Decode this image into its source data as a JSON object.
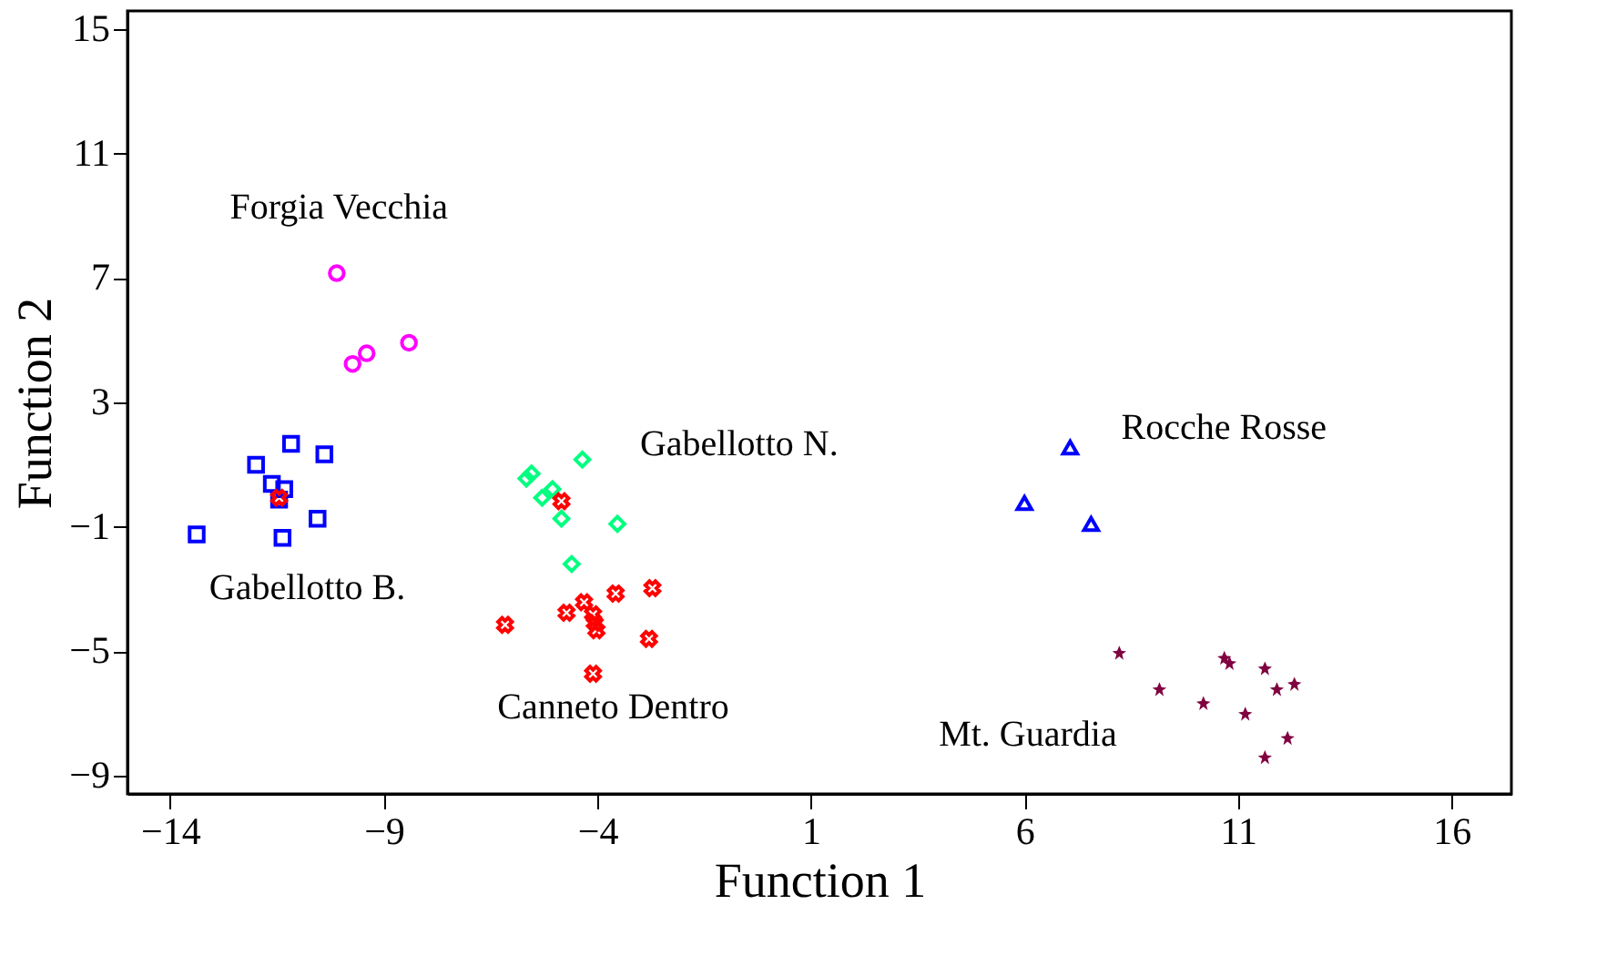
{
  "chart_data": {
    "type": "scatter",
    "xlabel": "Function 1",
    "ylabel": "Function 2",
    "xlim": [
      -15,
      17.4
    ],
    "ylim": [
      -9.6,
      15.6
    ],
    "xticks": [
      -14,
      -9,
      -4,
      1,
      6,
      11,
      16
    ],
    "yticks": [
      -9,
      -5,
      -1,
      3,
      7,
      11,
      15
    ],
    "grid": false,
    "series": [
      {
        "name": "Forgia Vecchia",
        "color": "#ff00ff",
        "marker": "circle",
        "x": [
          -10.1,
          -9.73,
          -9.4,
          -8.41
        ],
        "values": [
          7.16,
          4.24,
          4.58,
          4.92
        ]
      },
      {
        "name": "Gabellotto B.",
        "color": "#0000ff",
        "marker": "square",
        "x": [
          -11.17,
          -10.39,
          -11.99,
          -11.62,
          -11.33,
          -11.45,
          -10.55,
          -13.38,
          -11.37
        ],
        "values": [
          1.67,
          1.33,
          0.99,
          0.38,
          0.21,
          -0.13,
          -0.74,
          -1.25,
          -1.36
        ]
      },
      {
        "name": "Gabellotto N.",
        "color": "#00ff80",
        "marker": "diamond",
        "x": [
          -5.66,
          -5.54,
          -5.05,
          -5.29,
          -4.35,
          -4.84,
          -3.53,
          -4.6
        ],
        "values": [
          0.55,
          0.71,
          0.21,
          -0.07,
          1.16,
          -0.74,
          -0.91,
          -2.2
        ]
      },
      {
        "name": "Canneto Dentro",
        "color": "#ff0000",
        "marker": "cross",
        "x": [
          -6.16,
          -4.72,
          -4.31,
          -4.1,
          -4.06,
          -4.02,
          -3.57,
          -2.71,
          -2.79,
          -4.1,
          -11.45,
          -4.84
        ],
        "values": [
          -4.16,
          -3.77,
          -3.43,
          -3.82,
          -4.1,
          -4.33,
          -3.15,
          -2.98,
          -4.61,
          -5.73,
          -0.07,
          -0.18
        ]
      },
      {
        "name": "Rocche Rosse",
        "color": "#0000ff",
        "marker": "triangle",
        "x": [
          7.07,
          6.0,
          7.56
        ],
        "values": [
          1.55,
          -0.24,
          -0.91
        ]
      },
      {
        "name": "Mt. Guardia",
        "color": "#800040",
        "marker": "star",
        "x": [
          8.22,
          9.16,
          10.19,
          10.68,
          10.8,
          11.63,
          11.91,
          12.32,
          11.17,
          12.16,
          11.63
        ],
        "values": [
          -5.06,
          -6.23,
          -6.68,
          -5.22,
          -5.39,
          -5.56,
          -6.23,
          -6.06,
          -7.02,
          -7.8,
          -8.42
        ]
      }
    ]
  }
}
